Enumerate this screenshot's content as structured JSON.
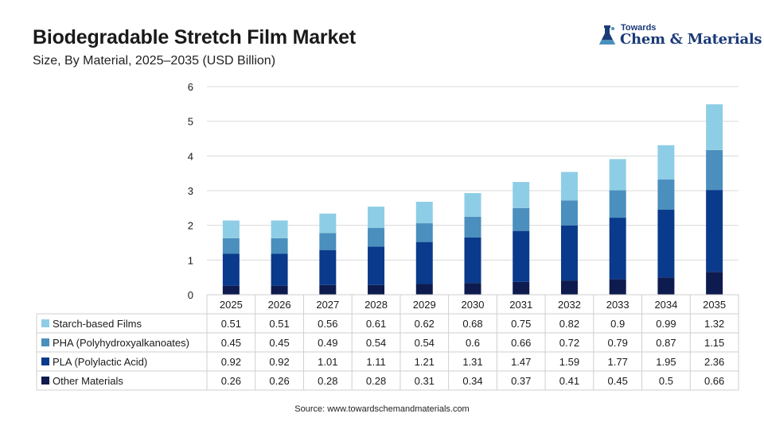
{
  "header": {
    "title": "Biodegradable Stretch Film Market",
    "subtitle": "Size, By Material, 2025–2035 (USD Billion)"
  },
  "logo": {
    "small": "Towards",
    "big": "Chem & Materials"
  },
  "source": "Source: www.towardschemandmaterials.com",
  "chart_data": {
    "type": "bar",
    "stacked": true,
    "categories": [
      "2025",
      "2026",
      "2027",
      "2028",
      "2029",
      "2030",
      "2031",
      "2032",
      "2033",
      "2034",
      "2035"
    ],
    "series": [
      {
        "name": "Other Materials",
        "color": "#0d1b4f",
        "values": [
          0.26,
          0.26,
          0.28,
          0.28,
          0.31,
          0.34,
          0.37,
          0.41,
          0.45,
          0.5,
          0.66
        ],
        "labels": [
          "0.26",
          "0.26",
          "0.28",
          "0.28",
          "0.31",
          "0.34",
          "0.37",
          "0.41",
          "0.45",
          "0.5",
          "0.66"
        ]
      },
      {
        "name": "PLA (Polylactic Acid)",
        "color": "#0a3a8c",
        "values": [
          0.92,
          0.92,
          1.01,
          1.11,
          1.21,
          1.31,
          1.47,
          1.59,
          1.77,
          1.95,
          2.36
        ],
        "labels": [
          "0.92",
          "0.92",
          "1.01",
          "1.11",
          "1.21",
          "1.31",
          "1.47",
          "1.59",
          "1.77",
          "1.95",
          "2.36"
        ]
      },
      {
        "name": "PHA (Polyhydroxyalkanoates)",
        "color": "#4a8fbd",
        "values": [
          0.45,
          0.45,
          0.49,
          0.54,
          0.54,
          0.6,
          0.66,
          0.72,
          0.79,
          0.87,
          1.15
        ],
        "labels": [
          "0.45",
          "0.45",
          "0.49",
          "0.54",
          "0.54",
          "0.6",
          "0.66",
          "0.72",
          "0.79",
          "0.87",
          "1.15"
        ]
      },
      {
        "name": "Starch-based Films",
        "color": "#8ecde6",
        "values": [
          0.51,
          0.51,
          0.56,
          0.61,
          0.62,
          0.68,
          0.75,
          0.82,
          0.9,
          0.99,
          1.32
        ],
        "labels": [
          "0.51",
          "0.51",
          "0.56",
          "0.61",
          "0.62",
          "0.68",
          "0.75",
          "0.82",
          "0.9",
          "0.99",
          "1.32"
        ]
      }
    ],
    "table_order": [
      "Starch-based Films",
      "PHA (Polyhydroxyalkanoates)",
      "PLA (Polylactic Acid)",
      "Other Materials"
    ],
    "ylim": [
      0,
      6
    ],
    "yticks": [
      "0",
      "1",
      "2",
      "3",
      "4",
      "5",
      "6"
    ],
    "grid": true,
    "legend": "data-table"
  }
}
